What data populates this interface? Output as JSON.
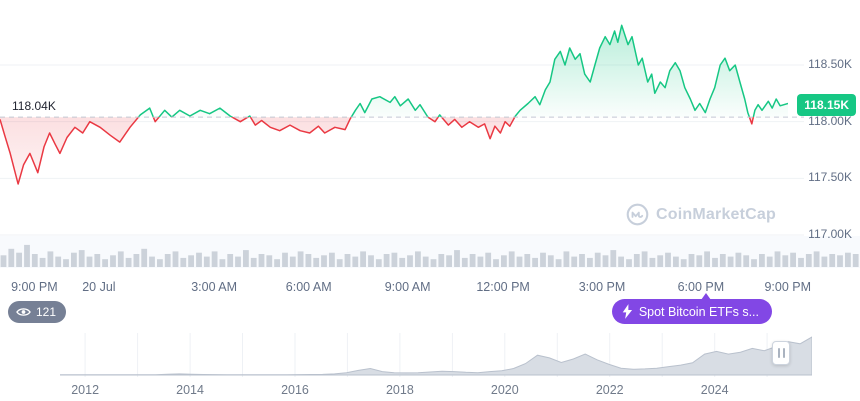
{
  "watermark": "CoinMarketCap",
  "badges": {
    "views": "121",
    "event": "Spot Bitcoin ETFs s..."
  },
  "colors": {
    "up": "#16c784",
    "down": "#ea3943",
    "purple": "#8247e5",
    "axis_text": "#616e85",
    "grid": "#eff2f5",
    "baseline_dash": "#c3c8d4",
    "volume_bar": "#ccd2da",
    "volume_bg": "#f8fafd",
    "mini_fill": "#d8dde4",
    "mini_stroke": "#b9c1cd",
    "mini_grid": "#eef1f5",
    "watermark_gray": "#c7cfdb"
  },
  "chart_data": [
    {
      "id": "price_24h",
      "type": "line",
      "unit": "USD thousands",
      "y_range": [
        116.95,
        119.0
      ],
      "baseline": {
        "price": 118.04,
        "label": "118.04K"
      },
      "current": {
        "price": 118.15,
        "label": "118.15K"
      },
      "y_ticks": [
        {
          "price": 118.5,
          "label": "118.50K"
        },
        {
          "price": 118.0,
          "label": "118.00K"
        },
        {
          "price": 117.5,
          "label": "117.50K"
        },
        {
          "price": 117.0,
          "label": "117.00K"
        }
      ],
      "x_ticks": [
        {
          "label": "9:00 PM",
          "x": 0.04
        },
        {
          "label": "20 Jul",
          "x": 0.115
        },
        {
          "label": "3:00 AM",
          "x": 0.249
        },
        {
          "label": "6:00 AM",
          "x": 0.359
        },
        {
          "label": "9:00 AM",
          "x": 0.474
        },
        {
          "label": "12:00 PM",
          "x": 0.585
        },
        {
          "label": "3:00 PM",
          "x": 0.7
        },
        {
          "label": "6:00 PM",
          "x": 0.815
        },
        {
          "label": "9:00 PM",
          "x": 0.916
        }
      ],
      "points": [
        [
          0.0,
          118.02
        ],
        [
          0.006,
          117.88
        ],
        [
          0.013,
          117.72
        ],
        [
          0.023,
          117.45
        ],
        [
          0.03,
          117.62
        ],
        [
          0.038,
          117.72
        ],
        [
          0.048,
          117.55
        ],
        [
          0.056,
          117.78
        ],
        [
          0.063,
          117.9
        ],
        [
          0.07,
          117.8
        ],
        [
          0.076,
          117.72
        ],
        [
          0.085,
          117.86
        ],
        [
          0.095,
          117.95
        ],
        [
          0.105,
          117.9
        ],
        [
          0.114,
          118.0
        ],
        [
          0.127,
          117.95
        ],
        [
          0.14,
          117.88
        ],
        [
          0.152,
          117.82
        ],
        [
          0.165,
          117.95
        ],
        [
          0.178,
          118.06
        ],
        [
          0.19,
          118.12
        ],
        [
          0.197,
          118.0
        ],
        [
          0.209,
          118.1
        ],
        [
          0.218,
          118.04
        ],
        [
          0.228,
          118.1
        ],
        [
          0.241,
          118.05
        ],
        [
          0.254,
          118.1
        ],
        [
          0.266,
          118.07
        ],
        [
          0.279,
          118.12
        ],
        [
          0.292,
          118.05
        ],
        [
          0.305,
          118.0
        ],
        [
          0.317,
          118.05
        ],
        [
          0.324,
          117.97
        ],
        [
          0.332,
          118.01
        ],
        [
          0.343,
          117.95
        ],
        [
          0.355,
          117.92
        ],
        [
          0.368,
          117.97
        ],
        [
          0.381,
          117.92
        ],
        [
          0.393,
          117.9
        ],
        [
          0.404,
          117.96
        ],
        [
          0.412,
          117.9
        ],
        [
          0.425,
          117.95
        ],
        [
          0.438,
          117.93
        ],
        [
          0.444,
          118.02
        ],
        [
          0.451,
          118.1
        ],
        [
          0.457,
          118.16
        ],
        [
          0.463,
          118.08
        ],
        [
          0.472,
          118.2
        ],
        [
          0.482,
          118.22
        ],
        [
          0.495,
          118.17
        ],
        [
          0.501,
          118.22
        ],
        [
          0.508,
          118.14
        ],
        [
          0.518,
          118.2
        ],
        [
          0.527,
          118.1
        ],
        [
          0.533,
          118.15
        ],
        [
          0.543,
          118.04
        ],
        [
          0.552,
          118.0
        ],
        [
          0.558,
          118.06
        ],
        [
          0.569,
          117.97
        ],
        [
          0.577,
          118.02
        ],
        [
          0.586,
          117.95
        ],
        [
          0.596,
          118.0
        ],
        [
          0.607,
          117.95
        ],
        [
          0.615,
          117.98
        ],
        [
          0.622,
          117.85
        ],
        [
          0.628,
          117.96
        ],
        [
          0.635,
          117.9
        ],
        [
          0.641,
          118.0
        ],
        [
          0.647,
          117.96
        ],
        [
          0.654,
          118.05
        ],
        [
          0.66,
          118.1
        ],
        [
          0.67,
          118.16
        ],
        [
          0.679,
          118.22
        ],
        [
          0.685,
          118.15
        ],
        [
          0.692,
          118.28
        ],
        [
          0.698,
          118.35
        ],
        [
          0.704,
          118.55
        ],
        [
          0.711,
          118.62
        ],
        [
          0.717,
          118.5
        ],
        [
          0.723,
          118.65
        ],
        [
          0.73,
          118.55
        ],
        [
          0.736,
          118.6
        ],
        [
          0.742,
          118.42
        ],
        [
          0.749,
          118.35
        ],
        [
          0.755,
          118.5
        ],
        [
          0.761,
          118.65
        ],
        [
          0.768,
          118.75
        ],
        [
          0.774,
          118.68
        ],
        [
          0.78,
          118.8
        ],
        [
          0.784,
          118.7
        ],
        [
          0.789,
          118.85
        ],
        [
          0.797,
          118.68
        ],
        [
          0.802,
          118.75
        ],
        [
          0.81,
          118.5
        ],
        [
          0.815,
          118.56
        ],
        [
          0.822,
          118.35
        ],
        [
          0.827,
          118.42
        ],
        [
          0.831,
          118.25
        ],
        [
          0.838,
          118.35
        ],
        [
          0.844,
          118.3
        ],
        [
          0.85,
          118.45
        ],
        [
          0.857,
          118.52
        ],
        [
          0.863,
          118.45
        ],
        [
          0.869,
          118.3
        ],
        [
          0.876,
          118.2
        ],
        [
          0.882,
          118.1
        ],
        [
          0.888,
          118.16
        ],
        [
          0.895,
          118.08
        ],
        [
          0.901,
          118.2
        ],
        [
          0.907,
          118.3
        ],
        [
          0.914,
          118.5
        ],
        [
          0.92,
          118.56
        ],
        [
          0.926,
          118.45
        ],
        [
          0.933,
          118.5
        ],
        [
          0.939,
          118.35
        ],
        [
          0.945,
          118.2
        ],
        [
          0.949,
          118.08
        ],
        [
          0.954,
          117.98
        ],
        [
          0.958,
          118.1
        ],
        [
          0.962,
          118.15
        ],
        [
          0.967,
          118.1
        ],
        [
          0.975,
          118.18
        ],
        [
          0.98,
          118.12
        ],
        [
          0.985,
          118.2
        ],
        [
          0.99,
          118.14
        ],
        [
          1.0,
          118.16
        ]
      ]
    },
    {
      "id": "volume_24h",
      "type": "bar",
      "values": [
        0.45,
        0.7,
        0.55,
        0.85,
        0.5,
        0.35,
        0.6,
        0.4,
        0.3,
        0.55,
        0.65,
        0.4,
        0.5,
        0.3,
        0.45,
        0.6,
        0.35,
        0.5,
        0.7,
        0.4,
        0.3,
        0.5,
        0.6,
        0.35,
        0.45,
        0.55,
        0.4,
        0.6,
        0.3,
        0.5,
        0.4,
        0.65,
        0.35,
        0.5,
        0.45,
        0.3,
        0.55,
        0.4,
        0.6,
        0.5,
        0.35,
        0.45,
        0.55,
        0.3,
        0.5,
        0.4,
        0.6,
        0.45,
        0.3,
        0.5,
        0.55,
        0.35,
        0.45,
        0.6,
        0.4,
        0.3,
        0.5,
        0.45,
        0.65,
        0.35,
        0.5,
        0.4,
        0.55,
        0.3,
        0.45,
        0.6,
        0.4,
        0.5,
        0.35,
        0.55,
        0.45,
        0.3,
        0.6,
        0.4,
        0.5,
        0.35,
        0.55,
        0.45,
        0.65,
        0.4,
        0.3,
        0.5,
        0.6,
        0.35,
        0.45,
        0.55,
        0.4,
        0.3,
        0.5,
        0.45,
        0.6,
        0.35,
        0.5,
        0.4,
        0.55,
        0.45,
        0.3,
        0.5,
        0.4,
        0.6,
        0.45,
        0.55,
        0.35,
        0.5,
        0.6,
        0.4,
        0.5,
        0.45,
        0.55,
        0.5
      ]
    },
    {
      "id": "price_history",
      "type": "area",
      "x_ticks": [
        {
          "label": "2012",
          "x": 0.099
        },
        {
          "label": "2014",
          "x": 0.221
        },
        {
          "label": "2016",
          "x": 0.343
        },
        {
          "label": "2018",
          "x": 0.465
        },
        {
          "label": "2020",
          "x": 0.587
        },
        {
          "label": "2022",
          "x": 0.709
        },
        {
          "label": "2024",
          "x": 0.831
        }
      ],
      "values": [
        0.004,
        0.004,
        0.004,
        0.005,
        0.005,
        0.005,
        0.006,
        0.006,
        0.008,
        0.02,
        0.028,
        0.02,
        0.014,
        0.011,
        0.009,
        0.008,
        0.007,
        0.006,
        0.007,
        0.008,
        0.01,
        0.012,
        0.016,
        0.03,
        0.06,
        0.12,
        0.17,
        0.09,
        0.06,
        0.055,
        0.06,
        0.08,
        0.1,
        0.09,
        0.07,
        0.06,
        0.09,
        0.11,
        0.17,
        0.3,
        0.52,
        0.45,
        0.33,
        0.42,
        0.55,
        0.4,
        0.28,
        0.18,
        0.15,
        0.16,
        0.18,
        0.22,
        0.26,
        0.32,
        0.55,
        0.62,
        0.55,
        0.6,
        0.7,
        0.64,
        0.75,
        0.88,
        0.82,
        1.0
      ]
    }
  ]
}
